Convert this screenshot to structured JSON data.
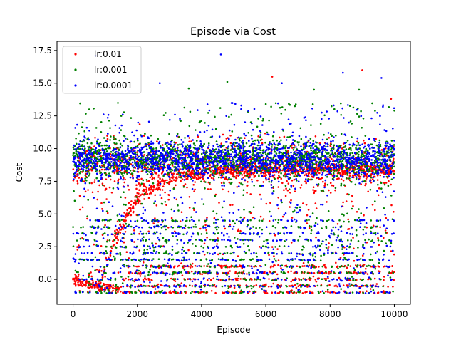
{
  "chart_data": {
    "type": "scatter",
    "title": "Episode via Cost",
    "xlabel": "Episode",
    "ylabel": "Cost",
    "xlim": [
      -500,
      10500
    ],
    "ylim": [
      -1.9,
      18.2
    ],
    "xticks": [
      0,
      2000,
      4000,
      6000,
      8000,
      10000
    ],
    "xtick_labels": [
      "0",
      "2000",
      "4000",
      "6000",
      "8000",
      "10000"
    ],
    "yticks": [
      0.0,
      2.5,
      5.0,
      7.5,
      10.0,
      12.5,
      15.0,
      17.5
    ],
    "ytick_labels": [
      "0.0",
      "2.5",
      "5.0",
      "7.5",
      "10.0",
      "12.5",
      "15.0",
      "17.5"
    ],
    "grid": false,
    "legend_position": "upper-left",
    "series": [
      {
        "name": "lr:0.01",
        "color": "#ff0000",
        "description_of_distribution": "dense band rising from ~0 near episode 900 to ~8.3 by episode 3500, then scattered; many points near -0.5 to -1 early",
        "samples": [
          [
            0,
            0.0
          ],
          [
            300,
            -0.3
          ],
          [
            600,
            -0.6
          ],
          [
            900,
            -0.8
          ],
          [
            1000,
            0.2
          ],
          [
            1200,
            1.5
          ],
          [
            1400,
            3.0
          ],
          [
            1600,
            4.5
          ],
          [
            1800,
            5.7
          ],
          [
            2000,
            6.6
          ],
          [
            2200,
            7.3
          ],
          [
            2400,
            7.8
          ],
          [
            2600,
            8.1
          ],
          [
            2800,
            8.3
          ],
          [
            3200,
            8.4
          ],
          [
            3600,
            8.5
          ],
          [
            5500,
            8.9
          ],
          [
            6200,
            15.5
          ],
          [
            9000,
            16.0
          ],
          [
            9900,
            13.8
          ]
        ]
      },
      {
        "name": "lr:0.001",
        "color": "#008000",
        "description_of_distribution": "dense band around 8.5-10.5 across all episodes with scattered points from -1 to 15",
        "samples": [
          [
            0,
            9.5
          ],
          [
            500,
            13.0
          ],
          [
            1500,
            12.5
          ],
          [
            2500,
            10.0
          ],
          [
            3600,
            14.6
          ],
          [
            4800,
            15.1
          ],
          [
            6000,
            13.4
          ],
          [
            7500,
            14.5
          ],
          [
            8900,
            14.5
          ],
          [
            10000,
            12.9
          ]
        ]
      },
      {
        "name": "lr:0.0001",
        "color": "#0000ff",
        "description_of_distribution": "dense band around 8.5-10.5 across all episodes, horizontal streaks at discrete levels (0, 0.5, 1, 1.5, 2, 2.5, 3, 3.5, 4), outliers up to 17.2",
        "samples": [
          [
            0,
            9.0
          ],
          [
            700,
            17.1
          ],
          [
            2700,
            15.0
          ],
          [
            4600,
            17.2
          ],
          [
            6500,
            15.0
          ],
          [
            8400,
            15.8
          ],
          [
            9600,
            15.4
          ],
          [
            10000,
            9.5
          ]
        ]
      }
    ]
  }
}
